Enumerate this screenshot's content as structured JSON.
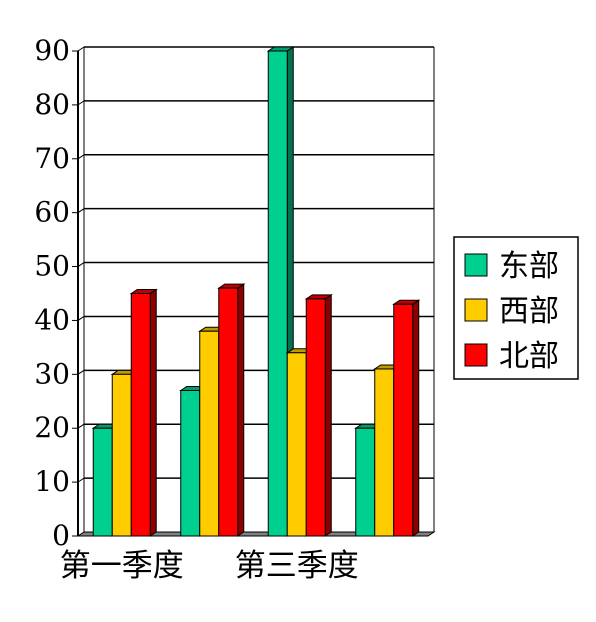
{
  "chart_data": {
    "type": "bar",
    "style": "3d-clustered-column",
    "categories": [
      "第一季度",
      "",
      "第三季度",
      ""
    ],
    "visible_category_labels": [
      "第一季度",
      "第三季度"
    ],
    "series": [
      {
        "name": "东部",
        "color": "#00d08f",
        "values": [
          20,
          27,
          90,
          20
        ]
      },
      {
        "name": "西部",
        "color": "#ffcc00",
        "values": [
          30,
          38,
          34,
          31
        ]
      },
      {
        "name": "北部",
        "color": "#ff0000",
        "values": [
          45,
          46,
          44,
          43
        ]
      }
    ],
    "yticks": [
      "0",
      "10",
      "20",
      "30",
      "40",
      "50",
      "60",
      "70",
      "80",
      "90"
    ],
    "ylim": [
      0,
      90
    ],
    "grid": true,
    "legend_position": "right",
    "title": "",
    "xlabel": "",
    "ylabel": ""
  }
}
